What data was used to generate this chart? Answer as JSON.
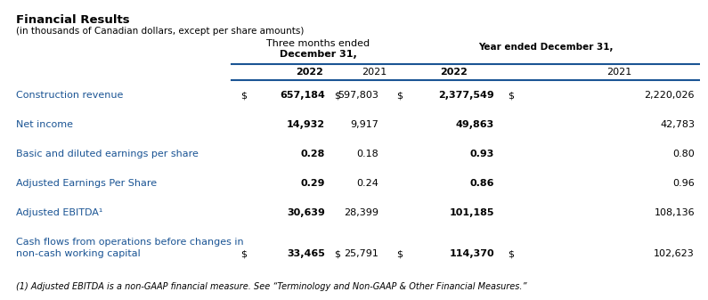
{
  "title": "Financial Results",
  "subtitle": "(in thousands of Canadian dollars, except per share amounts)",
  "col_header1_line1": "Three months ended",
  "col_header1_line2": "December 31,",
  "col_header2": "Year ended December 31,",
  "year_headers": [
    "2022",
    "2021",
    "2022",
    "2021"
  ],
  "rows": [
    {
      "label": "Construction revenue",
      "label2": "",
      "has_dollar": true,
      "dollar_q4": "$",
      "q4_2022": "657,184",
      "dollar_q4_2021": "$",
      "q4_2021": "597,803",
      "dollar_fy": "$",
      "fy_2022": "2,377,549",
      "dollar_fy_2021": "$",
      "fy_2021": "2,220,026"
    },
    {
      "label": "Net income",
      "label2": "",
      "has_dollar": false,
      "dollar_q4": "",
      "q4_2022": "14,932",
      "dollar_q4_2021": "",
      "q4_2021": "9,917",
      "dollar_fy": "",
      "fy_2022": "49,863",
      "dollar_fy_2021": "",
      "fy_2021": "42,783"
    },
    {
      "label": "Basic and diluted earnings per share",
      "label2": "",
      "has_dollar": false,
      "dollar_q4": "",
      "q4_2022": "0.28",
      "dollar_q4_2021": "",
      "q4_2021": "0.18",
      "dollar_fy": "",
      "fy_2022": "0.93",
      "dollar_fy_2021": "",
      "fy_2021": "0.80"
    },
    {
      "label": "Adjusted Earnings Per Share",
      "label2": "",
      "has_dollar": false,
      "dollar_q4": "",
      "q4_2022": "0.29",
      "dollar_q4_2021": "",
      "q4_2021": "0.24",
      "dollar_fy": "",
      "fy_2022": "0.86",
      "dollar_fy_2021": "",
      "fy_2021": "0.96"
    },
    {
      "label": "Adjusted EBITDA¹",
      "label2": "",
      "has_dollar": false,
      "dollar_q4": "",
      "q4_2022": "30,639",
      "dollar_q4_2021": "",
      "q4_2021": "28,399",
      "dollar_fy": "",
      "fy_2022": "101,185",
      "dollar_fy_2021": "",
      "fy_2021": "108,136"
    },
    {
      "label": "Cash flows from operations before changes in",
      "label2": "non-cash working capital",
      "has_dollar": true,
      "dollar_q4": "$",
      "q4_2022": "33,465",
      "dollar_q4_2021": "$",
      "q4_2021": "25,791",
      "dollar_fy": "$",
      "fy_2022": "114,370",
      "dollar_fy_2021": "$",
      "fy_2021": "102,623"
    }
  ],
  "footnote": "(1) Adjusted EBITDA is a non-GAAP financial measure. See “Terminology and Non-GAAP & Other Financial Measures.”",
  "bg_color": "#ffffff",
  "text_color": "#000000",
  "blue_color": "#1a5494",
  "line_color": "#1a5494",
  "fs_title": 9.5,
  "fs_subtitle": 7.5,
  "fs_header": 8,
  "fs_data": 8,
  "fs_footnote": 7
}
